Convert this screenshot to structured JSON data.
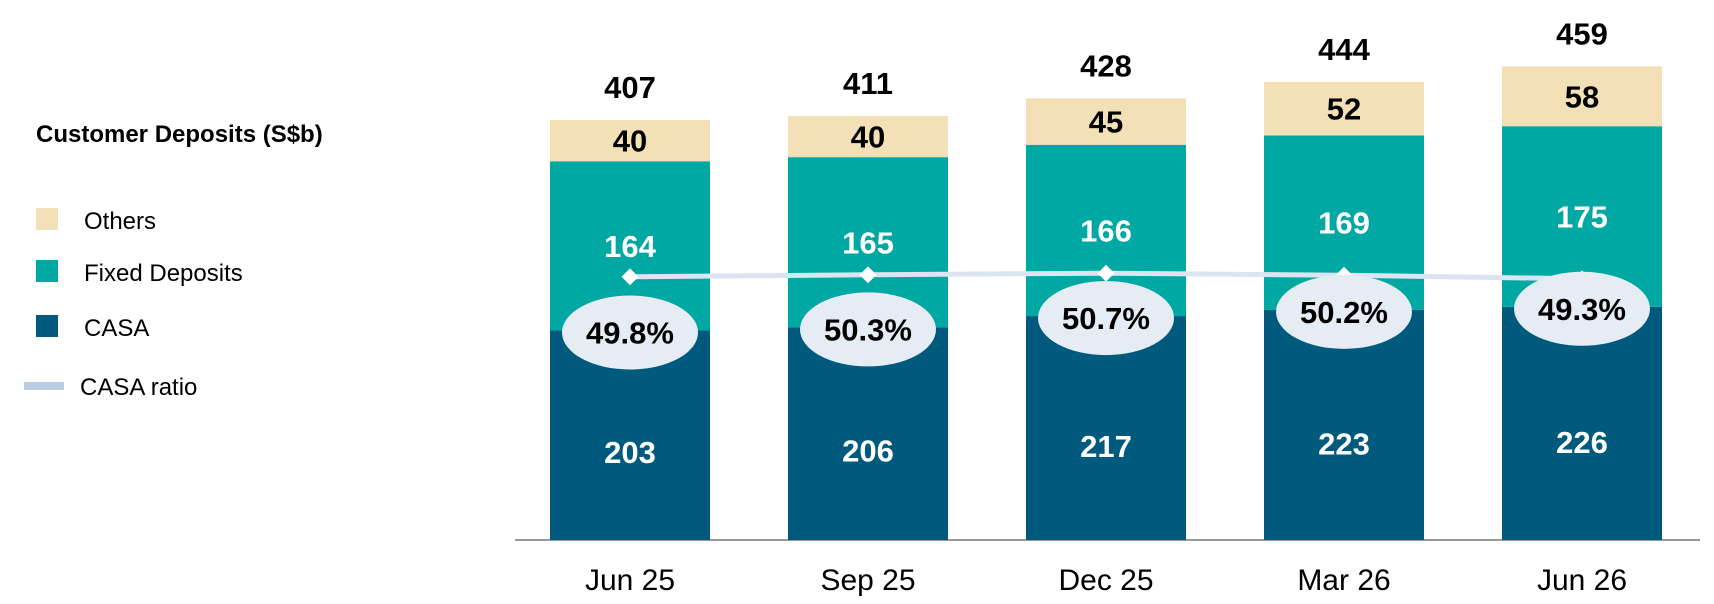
{
  "chart_data": {
    "type": "bar",
    "stacked": true,
    "title": "Customer Deposits (S$b)",
    "categories": [
      "Jun 25",
      "Sep 25",
      "Dec 25",
      "Mar 26",
      "Jun 26"
    ],
    "series": [
      {
        "name": "CASA",
        "values": [
          203,
          206,
          217,
          223,
          226
        ],
        "color": "#005a7d",
        "label_color": "#ffffff"
      },
      {
        "name": "Fixed Deposits",
        "values": [
          164,
          165,
          166,
          169,
          175
        ],
        "color": "#00a8a4",
        "label_color": "#ffffff"
      },
      {
        "name": "Others",
        "values": [
          40,
          40,
          45,
          52,
          58
        ],
        "color": "#f3e0b6",
        "label_color": "#000000"
      }
    ],
    "totals": [
      407,
      411,
      428,
      444,
      459
    ],
    "line_series": {
      "name": "CASA ratio",
      "values": [
        49.8,
        50.3,
        50.7,
        50.2,
        49.3
      ],
      "labels": [
        "49.8%",
        "50.3%",
        "50.7%",
        "50.2%",
        "49.3%"
      ],
      "color": "#dbe5f1"
    },
    "legend": {
      "position": "left",
      "items": [
        {
          "label": "Others",
          "color": "#f3e0b6",
          "shape": "square"
        },
        {
          "label": "Fixed Deposits",
          "color": "#00a8a4",
          "shape": "square"
        },
        {
          "label": "CASA",
          "color": "#005a7d",
          "shape": "square"
        },
        {
          "label": "CASA ratio",
          "color": "#b9cde3",
          "shape": "line"
        }
      ]
    },
    "ylim": [
      0,
      470
    ],
    "grid": false,
    "bubble_color": "#e6ecf4",
    "axis_color": "#999999"
  }
}
